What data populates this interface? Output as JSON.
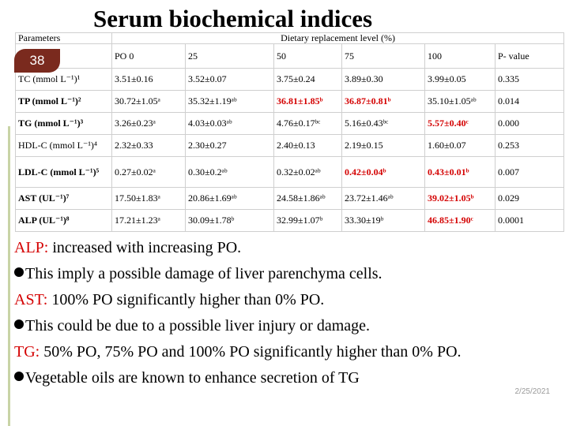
{
  "title": "Serum biochemical indices",
  "slide_number": "38",
  "date": "2/25/2021",
  "table": {
    "param_header": "Parameters",
    "level_header": "Dietary replacement level (%)",
    "columns": [
      "PO 0",
      "25",
      "50",
      "75",
      "100",
      "P- value"
    ],
    "rows": [
      {
        "param": "TC (mmol L⁻¹)¹",
        "bold": false,
        "values": [
          "3.51±0.16",
          "3.52±0.07",
          "3.75±0.24",
          "3.89±0.30",
          "3.99±0.05",
          "0.335"
        ],
        "highlight": [
          false,
          false,
          false,
          false,
          false,
          false
        ]
      },
      {
        "param": "TP (mmol L⁻¹)²",
        "bold": true,
        "values": [
          "30.72±1.05ᵃ",
          "35.32±1.19ᵃᵇ",
          "36.81±1.85ᵇ",
          "36.87±0.81ᵇ",
          "35.10±1.05ᵃᵇ",
          "0.014"
        ],
        "highlight": [
          false,
          false,
          true,
          true,
          false,
          false
        ]
      },
      {
        "param": "TG (mmol L⁻¹)³",
        "bold": true,
        "values": [
          "3.26±0.23ᵃ",
          "4.03±0.03ᵃᵇ",
          "4.76±0.17ᵇᶜ",
          "5.16±0.43ᵇᶜ",
          "5.57±0.40ᶜ",
          "0.000"
        ],
        "highlight": [
          false,
          false,
          false,
          false,
          true,
          false
        ]
      },
      {
        "param": "HDL-C (mmol L⁻¹)⁴",
        "bold": false,
        "values": [
          "2.32±0.33",
          "2.30±0.27",
          "2.40±0.13",
          "2.19±0.15",
          "1.60±0.07",
          "0.253"
        ],
        "highlight": [
          false,
          false,
          false,
          false,
          false,
          false
        ]
      },
      {
        "param": "LDL-C (mmol L⁻¹)⁵",
        "bold": true,
        "values": [
          "0.27±0.02ᵃ",
          "0.30±0.2ᵃᵇ",
          "0.32±0.02ᵃᵇ",
          "0.42±0.04ᵇ",
          "0.43±0.01ᵇ",
          "0.007"
        ],
        "highlight": [
          false,
          false,
          false,
          true,
          true,
          false
        ]
      },
      {
        "param": "AST (UL⁻¹)⁷",
        "bold": true,
        "values": [
          "17.50±1.83ᵃ",
          "20.86±1.69ᵃᵇ",
          "24.58±1.86ᵃᵇ",
          "23.72±1.46ᵃᵇ",
          "39.02±1.05ᵇ",
          "0.029"
        ],
        "highlight": [
          false,
          false,
          false,
          false,
          true,
          false
        ]
      },
      {
        "param": "ALP (UL⁻¹)⁸",
        "bold": true,
        "values": [
          "17.21±1.23ᵃ",
          "30.09±1.78ᵇ",
          "32.99±1.07ᵇ",
          "33.30±19ᵇ",
          "46.85±1.90ᶜ",
          "0.0001"
        ],
        "highlight": [
          false,
          false,
          false,
          false,
          true,
          false
        ]
      }
    ]
  },
  "comments": [
    {
      "label": "ALP:",
      "text": " increased with increasing PO.",
      "bullet": false
    },
    {
      "label": "",
      "text": "This imply a possible damage of liver parenchyma cells.",
      "bullet": true
    },
    {
      "label": "AST:",
      "text": " 100% PO significantly higher than 0% PO.",
      "bullet": false
    },
    {
      "label": "",
      "text": "This could be due to a possible liver injury or damage.",
      "bullet": true
    },
    {
      "label": "TG:",
      "text": " 50% PO, 75% PO and 100% PO significantly higher than 0% PO.",
      "bullet": false
    },
    {
      "label": "",
      "text": "Vegetable oils are known to enhance secretion of TG",
      "bullet": true
    }
  ]
}
